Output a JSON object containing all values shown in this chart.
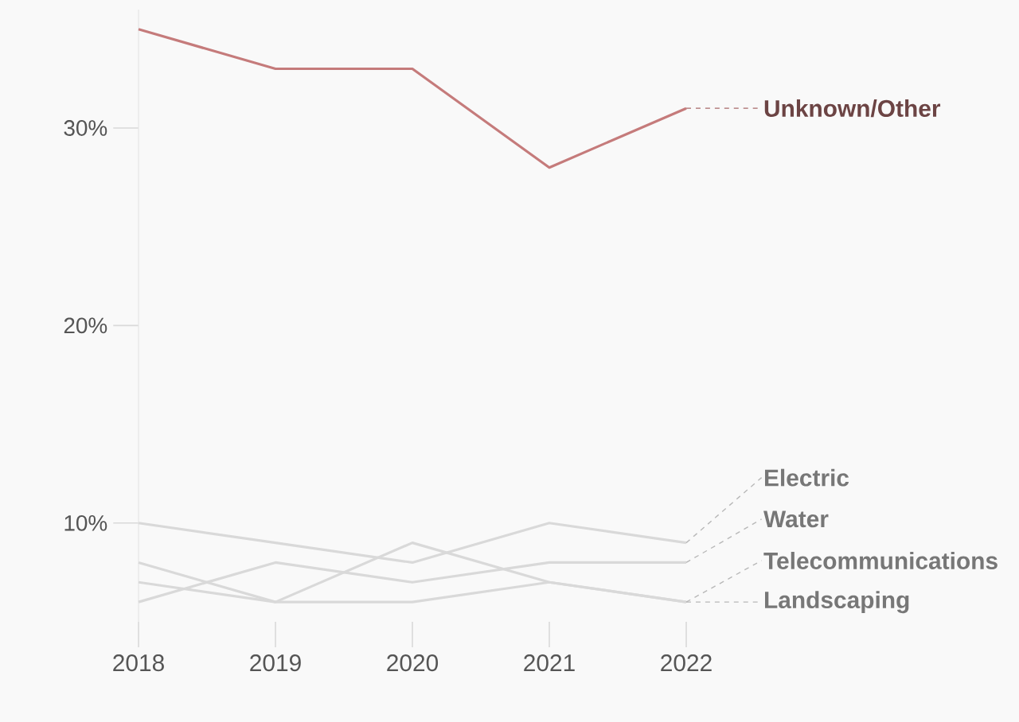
{
  "chart_data": {
    "type": "line",
    "x": [
      2018,
      2019,
      2020,
      2021,
      2022
    ],
    "series": [
      {
        "name": "Unknown/Other",
        "color": "#c57b7b",
        "values": [
          35,
          33,
          33,
          28,
          31
        ]
      },
      {
        "name": "Electric",
        "color": "#d9d9d9",
        "values": [
          10,
          9,
          8,
          10,
          9
        ]
      },
      {
        "name": "Water",
        "color": "#d9d9d9",
        "values": [
          6,
          8,
          7,
          8,
          8
        ]
      },
      {
        "name": "Telecommunications",
        "color": "#d9d9d9",
        "values": [
          7,
          6,
          6,
          7,
          6
        ]
      },
      {
        "name": "Landscaping",
        "color": "#d9d9d9",
        "values": [
          8,
          6,
          9,
          7,
          6
        ]
      }
    ],
    "xlim": [
      2018,
      2022
    ],
    "xticks": [
      2018,
      2019,
      2020,
      2021,
      2022
    ],
    "ylim": [
      5,
      36
    ],
    "yticks": [
      {
        "value": 10,
        "label": "10%"
      },
      {
        "value": 20,
        "label": "20%"
      },
      {
        "value": 30,
        "label": "30%"
      }
    ],
    "grid": false,
    "marker": "none",
    "line_style": "solid"
  }
}
